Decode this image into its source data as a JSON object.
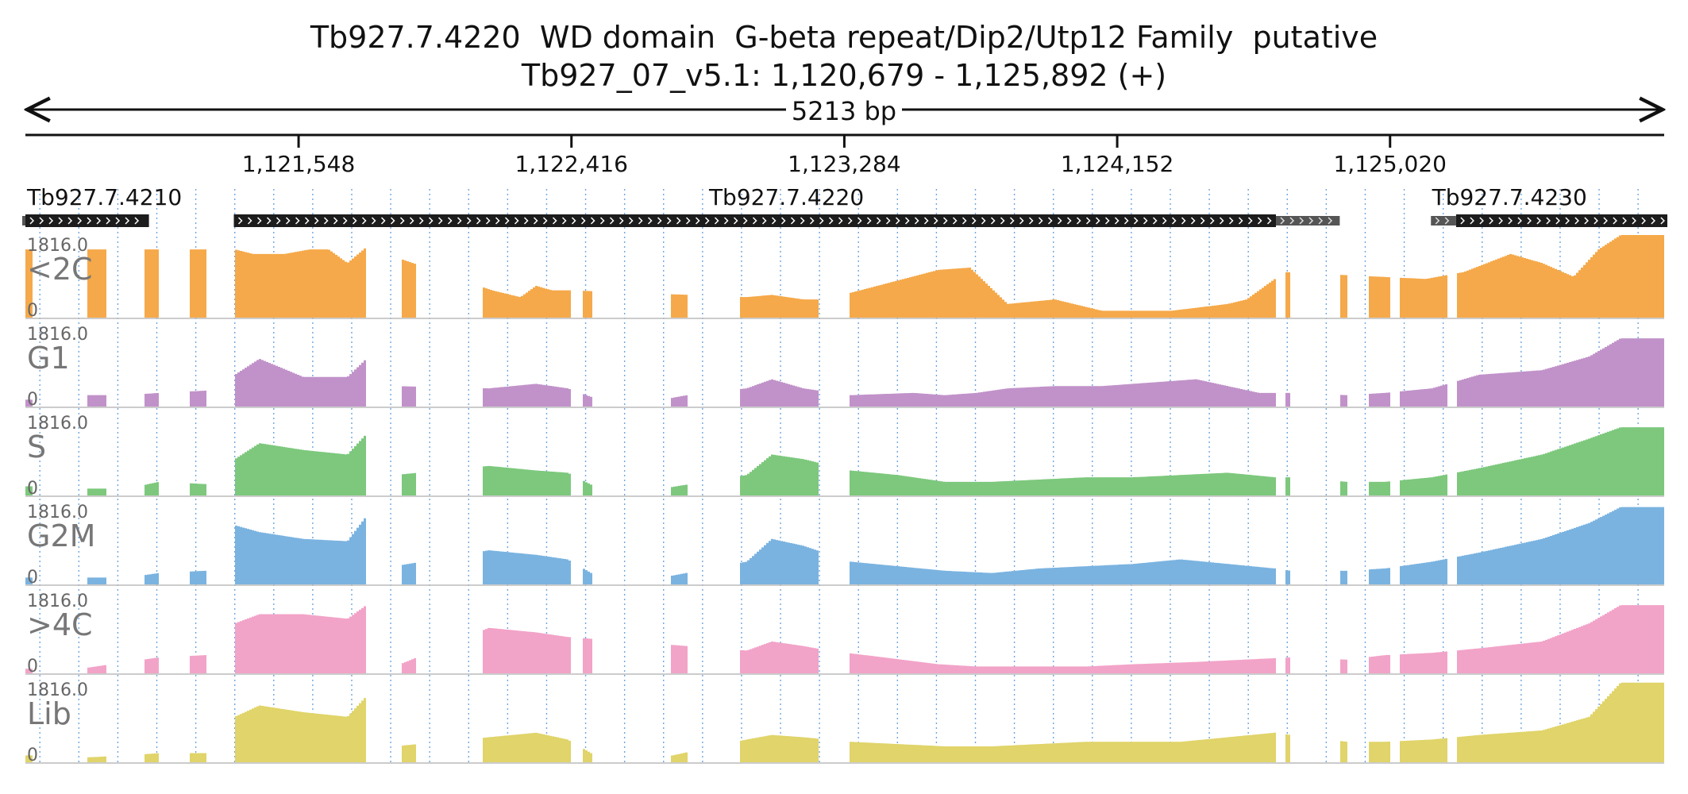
{
  "title": "Tb927.7.4220  WD domain  G-beta repeat/Dip2/Utp12 Family  putative",
  "subtitle": "Tb927_07_v5.1: 1,120,679 - 1,125,892 (+)",
  "span_label": "5213 bp",
  "region": {
    "start": 1120679,
    "end": 1125892
  },
  "ticks": [
    {
      "pos": 1121548,
      "label": "1,121,548"
    },
    {
      "pos": 1122416,
      "label": "1,122,416"
    },
    {
      "pos": 1123284,
      "label": "1,123,284"
    },
    {
      "pos": 1124152,
      "label": "1,124,152"
    },
    {
      "pos": 1125020,
      "label": "1,125,020"
    }
  ],
  "genes": [
    {
      "name": "Tb927.7.4210",
      "label_pos": 1120679,
      "cds": [
        1120679,
        1121072
      ],
      "utr5": [
        1120600,
        1120679
      ],
      "utr3": [
        1120600,
        1120600
      ]
    },
    {
      "name": "Tb927.7.4220",
      "label_pos": 1123100,
      "cds": [
        1121342,
        1124657
      ],
      "utr5": [
        1121342,
        1121342
      ],
      "utr3": [
        1124657,
        1124860
      ]
    },
    {
      "name": "Tb927.7.4230",
      "label_pos": 1125400,
      "cds": [
        1125230,
        1125920
      ],
      "utr5": [
        1125150,
        1125230
      ],
      "utr3": [
        1125920,
        1125920
      ]
    }
  ],
  "chart_data": {
    "type": "area",
    "y_max_label": "1816.0",
    "y_min_label": "0",
    "ylim": [
      0,
      1816
    ],
    "x_unit": "genome position (bp)",
    "exons": [
      [
        1120679,
        1120700
      ],
      [
        1120870,
        1120930
      ],
      [
        1121057,
        1121100
      ],
      [
        1121200,
        1121250
      ],
      [
        1121342,
        1121760
      ],
      [
        1121870,
        1121920
      ],
      [
        1122130,
        1122410
      ],
      [
        1122450,
        1122480
      ],
      [
        1122730,
        1122780
      ],
      [
        1122950,
        1123200
      ],
      [
        1123300,
        1124000
      ],
      [
        1124000,
        1124650
      ],
      [
        1124680,
        1124700
      ],
      [
        1124860,
        1124880
      ],
      [
        1124950,
        1125020
      ],
      [
        1125050,
        1125200
      ],
      [
        1125230,
        1125892
      ]
    ],
    "series": [
      {
        "name": "<2C",
        "color": "#f5a94a",
        "points": [
          [
            1121342,
            1500
          ],
          [
            1121400,
            1400
          ],
          [
            1121500,
            1400
          ],
          [
            1121580,
            1500
          ],
          [
            1121640,
            1500
          ],
          [
            1121700,
            1200
          ],
          [
            1121760,
            1550
          ],
          [
            1122160,
            600
          ],
          [
            1122250,
            450
          ],
          [
            1122300,
            700
          ],
          [
            1122350,
            600
          ],
          [
            1122410,
            600
          ],
          [
            1122970,
            450
          ],
          [
            1123050,
            500
          ],
          [
            1123150,
            400
          ],
          [
            1123220,
            400
          ],
          [
            1123580,
            1050
          ],
          [
            1123680,
            1100
          ],
          [
            1123800,
            300
          ],
          [
            1123950,
            400
          ],
          [
            1124100,
            150
          ],
          [
            1124320,
            150
          ],
          [
            1124500,
            300
          ],
          [
            1124560,
            400
          ],
          [
            1124680,
            1000
          ],
          [
            1125130,
            850
          ],
          [
            1125250,
            1000
          ],
          [
            1125400,
            1400
          ],
          [
            1125500,
            1200
          ],
          [
            1125600,
            900
          ],
          [
            1125680,
            1500
          ],
          [
            1125750,
            1816
          ]
        ]
      },
      {
        "name": "G1",
        "color": "#c192c9",
        "points": [
          [
            1120700,
            150
          ],
          [
            1120850,
            250
          ],
          [
            1121000,
            250
          ],
          [
            1121100,
            300
          ],
          [
            1121250,
            350
          ],
          [
            1121342,
            700
          ],
          [
            1121420,
            1050
          ],
          [
            1121560,
            650
          ],
          [
            1121700,
            650
          ],
          [
            1121760,
            1050
          ],
          [
            1121850,
            450
          ],
          [
            1122150,
            400
          ],
          [
            1122300,
            500
          ],
          [
            1122400,
            400
          ],
          [
            1122500,
            150
          ],
          [
            1122700,
            150
          ],
          [
            1122780,
            250
          ],
          [
            1122970,
            400
          ],
          [
            1123050,
            600
          ],
          [
            1123150,
            400
          ],
          [
            1123300,
            250
          ],
          [
            1123500,
            300
          ],
          [
            1123600,
            250
          ],
          [
            1123700,
            300
          ],
          [
            1123800,
            400
          ],
          [
            1123950,
            450
          ],
          [
            1124100,
            450
          ],
          [
            1124300,
            550
          ],
          [
            1124400,
            600
          ],
          [
            1124500,
            450
          ],
          [
            1124600,
            300
          ],
          [
            1124700,
            300
          ],
          [
            1124880,
            250
          ],
          [
            1125000,
            300
          ],
          [
            1125150,
            400
          ],
          [
            1125300,
            700
          ],
          [
            1125500,
            800
          ],
          [
            1125650,
            1100
          ],
          [
            1125750,
            1500
          ]
        ]
      },
      {
        "name": "S",
        "color": "#7dc87d",
        "points": [
          [
            1120700,
            200
          ],
          [
            1120850,
            150
          ],
          [
            1121000,
            150
          ],
          [
            1121100,
            300
          ],
          [
            1121250,
            250
          ],
          [
            1121342,
            800
          ],
          [
            1121420,
            1150
          ],
          [
            1121560,
            1000
          ],
          [
            1121700,
            900
          ],
          [
            1121760,
            1350
          ],
          [
            1121850,
            450
          ],
          [
            1122150,
            650
          ],
          [
            1122300,
            550
          ],
          [
            1122400,
            500
          ],
          [
            1122500,
            150
          ],
          [
            1122700,
            150
          ],
          [
            1122970,
            450
          ],
          [
            1123050,
            900
          ],
          [
            1123150,
            800
          ],
          [
            1123300,
            550
          ],
          [
            1123450,
            450
          ],
          [
            1123600,
            300
          ],
          [
            1123750,
            300
          ],
          [
            1123900,
            350
          ],
          [
            1124050,
            400
          ],
          [
            1124200,
            400
          ],
          [
            1124350,
            450
          ],
          [
            1124500,
            500
          ],
          [
            1124650,
            400
          ],
          [
            1124700,
            400
          ],
          [
            1124880,
            300
          ],
          [
            1125000,
            300
          ],
          [
            1125150,
            400
          ],
          [
            1125300,
            600
          ],
          [
            1125500,
            900
          ],
          [
            1125650,
            1250
          ],
          [
            1125750,
            1500
          ]
        ]
      },
      {
        "name": "G2M",
        "color": "#7ab3e0",
        "points": [
          [
            1120700,
            150
          ],
          [
            1120850,
            150
          ],
          [
            1121000,
            150
          ],
          [
            1121100,
            250
          ],
          [
            1121250,
            300
          ],
          [
            1121342,
            1300
          ],
          [
            1121420,
            1150
          ],
          [
            1121560,
            1000
          ],
          [
            1121700,
            950
          ],
          [
            1121760,
            1500
          ],
          [
            1121850,
            400
          ],
          [
            1122150,
            750
          ],
          [
            1122300,
            650
          ],
          [
            1122400,
            550
          ],
          [
            1122500,
            150
          ],
          [
            1122700,
            150
          ],
          [
            1122970,
            500
          ],
          [
            1123050,
            1000
          ],
          [
            1123150,
            850
          ],
          [
            1123300,
            500
          ],
          [
            1123450,
            400
          ],
          [
            1123600,
            300
          ],
          [
            1123750,
            250
          ],
          [
            1123900,
            350
          ],
          [
            1124050,
            400
          ],
          [
            1124200,
            450
          ],
          [
            1124350,
            550
          ],
          [
            1124500,
            450
          ],
          [
            1124650,
            350
          ],
          [
            1124700,
            300
          ],
          [
            1124880,
            300
          ],
          [
            1125000,
            350
          ],
          [
            1125150,
            500
          ],
          [
            1125300,
            700
          ],
          [
            1125500,
            1000
          ],
          [
            1125650,
            1350
          ],
          [
            1125750,
            1700
          ]
        ]
      },
      {
        "name": ">4C",
        "color": "#f2a3c8",
        "points": [
          [
            1120700,
            100
          ],
          [
            1120850,
            100
          ],
          [
            1121000,
            250
          ],
          [
            1121100,
            350
          ],
          [
            1121250,
            400
          ],
          [
            1121342,
            1100
          ],
          [
            1121420,
            1300
          ],
          [
            1121560,
            1300
          ],
          [
            1121700,
            1200
          ],
          [
            1121760,
            1500
          ],
          [
            1121850,
            150
          ],
          [
            1122150,
            1000
          ],
          [
            1122300,
            900
          ],
          [
            1122400,
            800
          ],
          [
            1122970,
            500
          ],
          [
            1123050,
            700
          ],
          [
            1123150,
            600
          ],
          [
            1123230,
            500
          ],
          [
            1123580,
            200
          ],
          [
            1123700,
            150
          ],
          [
            1123900,
            150
          ],
          [
            1124050,
            150
          ],
          [
            1124200,
            200
          ],
          [
            1124400,
            250
          ],
          [
            1124550,
            300
          ],
          [
            1124700,
            350
          ],
          [
            1124880,
            300
          ],
          [
            1125000,
            400
          ],
          [
            1125150,
            450
          ],
          [
            1125300,
            550
          ],
          [
            1125500,
            700
          ],
          [
            1125650,
            1100
          ],
          [
            1125750,
            1500
          ]
        ]
      },
      {
        "name": "Lib",
        "color": "#e0d46a",
        "points": [
          [
            1120700,
            150
          ],
          [
            1120850,
            100
          ],
          [
            1121000,
            150
          ],
          [
            1121100,
            200
          ],
          [
            1121250,
            200
          ],
          [
            1121342,
            1000
          ],
          [
            1121420,
            1250
          ],
          [
            1121560,
            1100
          ],
          [
            1121700,
            1000
          ],
          [
            1121760,
            1450
          ],
          [
            1121850,
            350
          ],
          [
            1122150,
            550
          ],
          [
            1122300,
            650
          ],
          [
            1122400,
            500
          ],
          [
            1122500,
            100
          ],
          [
            1122700,
            100
          ],
          [
            1122970,
            500
          ],
          [
            1123050,
            600
          ],
          [
            1123150,
            550
          ],
          [
            1123300,
            450
          ],
          [
            1123450,
            400
          ],
          [
            1123600,
            350
          ],
          [
            1123750,
            350
          ],
          [
            1123900,
            400
          ],
          [
            1124050,
            450
          ],
          [
            1124200,
            450
          ],
          [
            1124350,
            450
          ],
          [
            1124500,
            550
          ],
          [
            1124650,
            650
          ],
          [
            1124700,
            600
          ],
          [
            1124880,
            450
          ],
          [
            1125000,
            450
          ],
          [
            1125150,
            500
          ],
          [
            1125300,
            600
          ],
          [
            1125500,
            700
          ],
          [
            1125650,
            1000
          ],
          [
            1125750,
            1750
          ]
        ]
      }
    ]
  }
}
